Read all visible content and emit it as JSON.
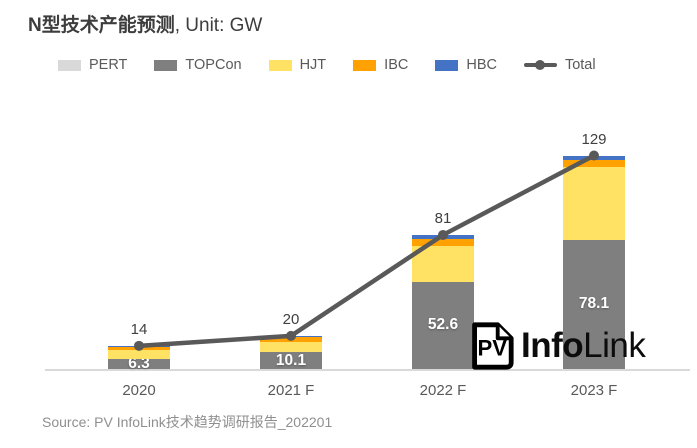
{
  "title": {
    "main": "N型技术产能预测",
    "suffix": ", Unit: GW"
  },
  "legend": [
    {
      "label": "PERT",
      "type": "swatch",
      "color": "#D9D9D9"
    },
    {
      "label": "TOPCon",
      "type": "swatch",
      "color": "#7F7F7F"
    },
    {
      "label": "HJT",
      "type": "swatch",
      "color": "#FFE163"
    },
    {
      "label": "IBC",
      "type": "swatch",
      "color": "#FFA100"
    },
    {
      "label": "HBC",
      "type": "swatch",
      "color": "#4472C4"
    },
    {
      "label": "Total",
      "type": "line",
      "color": "#595959"
    }
  ],
  "chart_data": {
    "type": "stacked-bar+line",
    "unit": "GW",
    "categories": [
      "2020",
      "2021 F",
      "2022 F",
      "2023 F"
    ],
    "series": [
      {
        "name": "PERT",
        "color": "#D9D9D9",
        "values": [
          0,
          0,
          0,
          0
        ]
      },
      {
        "name": "TOPCon",
        "color": "#7F7F7F",
        "values": [
          6.3,
          10.1,
          52.6,
          78.1
        ],
        "value_labels": [
          "6.3",
          "10.1",
          "52.6",
          "78.1"
        ]
      },
      {
        "name": "HJT",
        "color": "#FFE163",
        "values": [
          5.0,
          6.0,
          22.0,
          43.9
        ]
      },
      {
        "name": "IBC",
        "color": "#FFA100",
        "values": [
          2.5,
          3.5,
          4.0,
          4.0
        ]
      },
      {
        "name": "HBC",
        "color": "#4472C4",
        "values": [
          0.2,
          0.4,
          2.4,
          3.0
        ]
      }
    ],
    "line_series": {
      "name": "Total",
      "color": "#595959",
      "values": [
        14,
        20,
        81,
        129
      ],
      "labels": [
        "14",
        "20",
        "81",
        "129"
      ]
    },
    "ylim": [
      0,
      140
    ],
    "grid": false,
    "legend_position": "top"
  },
  "logo": {
    "badge": "PV",
    "name_bold": "Info",
    "name_light": "Link"
  },
  "source": "Source: PV InfoLink技术趋势调研报告_202201"
}
